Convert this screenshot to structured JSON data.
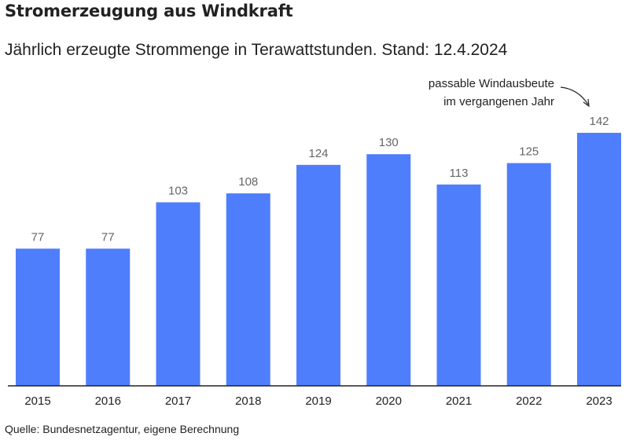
{
  "header": {
    "title": "Stromerzeugung aus Windkraft",
    "subtitle": "Jährlich erzeugte Strommenge in Terawattstunden. Stand: 12.4.2024"
  },
  "footer": {
    "source": "Quelle: Bundesnetzagentur, eigene Berechnung"
  },
  "colors": {
    "bar": "#4f7efc",
    "axis": "#222222",
    "value_label": "#666666"
  },
  "chart_data": {
    "type": "bar",
    "title": "Stromerzeugung aus Windkraft",
    "subtitle": "Jährlich erzeugte Strommenge in Terawattstunden. Stand: 12.4.2024",
    "xlabel": "",
    "ylabel": "",
    "categories": [
      "2015",
      "2016",
      "2017",
      "2018",
      "2019",
      "2020",
      "2021",
      "2022",
      "2023"
    ],
    "values": [
      77,
      77,
      103,
      108,
      124,
      130,
      113,
      125,
      142
    ],
    "ylim": [
      0,
      142
    ],
    "grid": false,
    "legend": "none",
    "annotations": [
      {
        "category": "2023",
        "lines": [
          "passable Windausbeute",
          "im vergangenen Jahr"
        ]
      }
    ]
  }
}
